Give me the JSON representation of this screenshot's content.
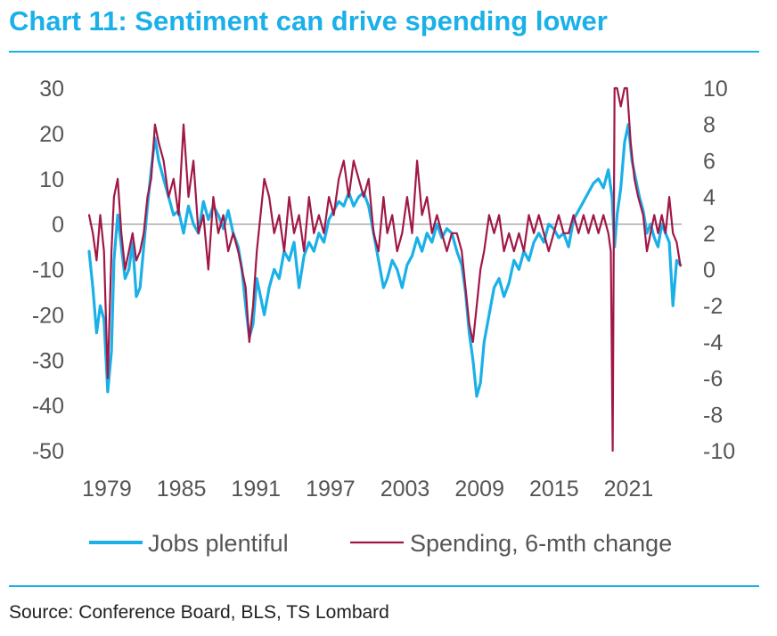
{
  "title": "Chart 11: Sentiment can drive spending lower",
  "source": "Source: Conference Board, BLS, TS Lombard",
  "chart_data": {
    "type": "line",
    "x_ticks": [
      "1979",
      "1985",
      "1991",
      "1997",
      "2003",
      "2009",
      "2015",
      "2021"
    ],
    "xlim": [
      1978.0,
      2025.7
    ],
    "y_left": {
      "ylim": [
        -50,
        30
      ],
      "ticks": [
        "30",
        "20",
        "10",
        "0",
        "-10",
        "-20",
        "-30",
        "-40",
        "-50"
      ]
    },
    "y_right": {
      "ylim": [
        -10,
        10
      ],
      "ticks": [
        "10",
        "8",
        "6",
        "4",
        "2",
        "0",
        "-2",
        "-4",
        "-6",
        "-8",
        "-10"
      ]
    },
    "zero_line_left": 0,
    "colors": {
      "jobs": "#1ab0e8",
      "spending": "#a01848",
      "zero": "#9a9a9a",
      "axis_text": "#555555"
    },
    "series": [
      {
        "name": "Jobs plentiful",
        "axis": "left",
        "points": [
          [
            1978.0,
            -6
          ],
          [
            1978.3,
            -14
          ],
          [
            1978.6,
            -24
          ],
          [
            1978.9,
            -18
          ],
          [
            1979.2,
            -21
          ],
          [
            1979.5,
            -37
          ],
          [
            1979.8,
            -28
          ],
          [
            1980.0,
            -8
          ],
          [
            1980.3,
            2
          ],
          [
            1980.6,
            -5
          ],
          [
            1980.9,
            -12
          ],
          [
            1981.2,
            -10
          ],
          [
            1981.5,
            -4
          ],
          [
            1981.8,
            -16
          ],
          [
            1982.1,
            -14
          ],
          [
            1982.4,
            -5
          ],
          [
            1982.7,
            4
          ],
          [
            1983.0,
            12
          ],
          [
            1983.3,
            19
          ],
          [
            1983.6,
            14
          ],
          [
            1984.0,
            10
          ],
          [
            1984.4,
            6
          ],
          [
            1984.8,
            2
          ],
          [
            1985.2,
            3
          ],
          [
            1985.6,
            -2
          ],
          [
            1986.0,
            4
          ],
          [
            1986.4,
            0
          ],
          [
            1986.8,
            -2
          ],
          [
            1987.2,
            5
          ],
          [
            1987.6,
            1
          ],
          [
            1988.0,
            4
          ],
          [
            1988.4,
            2
          ],
          [
            1988.8,
            -1
          ],
          [
            1989.2,
            3
          ],
          [
            1989.6,
            -2
          ],
          [
            1990.0,
            -5
          ],
          [
            1990.3,
            -10
          ],
          [
            1990.6,
            -18
          ],
          [
            1990.9,
            -25
          ],
          [
            1991.2,
            -22
          ],
          [
            1991.5,
            -12
          ],
          [
            1991.8,
            -16
          ],
          [
            1992.1,
            -20
          ],
          [
            1992.5,
            -14
          ],
          [
            1992.9,
            -10
          ],
          [
            1993.3,
            -12
          ],
          [
            1993.7,
            -6
          ],
          [
            1994.1,
            -8
          ],
          [
            1994.5,
            -4
          ],
          [
            1994.9,
            -14
          ],
          [
            1995.3,
            -7
          ],
          [
            1995.7,
            -4
          ],
          [
            1996.1,
            -6
          ],
          [
            1996.5,
            -2
          ],
          [
            1996.9,
            -4
          ],
          [
            1997.3,
            1
          ],
          [
            1997.7,
            3
          ],
          [
            1998.1,
            5
          ],
          [
            1998.5,
            4
          ],
          [
            1998.9,
            7
          ],
          [
            1999.3,
            4
          ],
          [
            1999.7,
            6
          ],
          [
            2000.1,
            7
          ],
          [
            2000.5,
            4
          ],
          [
            2000.9,
            -2
          ],
          [
            2001.3,
            -8
          ],
          [
            2001.7,
            -14
          ],
          [
            2002.0,
            -12
          ],
          [
            2002.4,
            -8
          ],
          [
            2002.8,
            -10
          ],
          [
            2003.2,
            -14
          ],
          [
            2003.6,
            -9
          ],
          [
            2004.0,
            -7
          ],
          [
            2004.4,
            -3
          ],
          [
            2004.8,
            -6
          ],
          [
            2005.2,
            -2
          ],
          [
            2005.6,
            -4
          ],
          [
            2006.0,
            0
          ],
          [
            2006.4,
            -3
          ],
          [
            2006.8,
            -1
          ],
          [
            2007.2,
            -2
          ],
          [
            2007.6,
            -6
          ],
          [
            2008.0,
            -9
          ],
          [
            2008.3,
            -15
          ],
          [
            2008.6,
            -24
          ],
          [
            2008.9,
            -30
          ],
          [
            2009.2,
            -38
          ],
          [
            2009.5,
            -35
          ],
          [
            2009.8,
            -26
          ],
          [
            2010.2,
            -20
          ],
          [
            2010.6,
            -14
          ],
          [
            2011.0,
            -12
          ],
          [
            2011.4,
            -16
          ],
          [
            2011.8,
            -13
          ],
          [
            2012.2,
            -8
          ],
          [
            2012.6,
            -10
          ],
          [
            2013.0,
            -6
          ],
          [
            2013.4,
            -8
          ],
          [
            2013.8,
            -4
          ],
          [
            2014.2,
            -2
          ],
          [
            2014.6,
            -4
          ],
          [
            2015.0,
            0
          ],
          [
            2015.4,
            -1
          ],
          [
            2015.8,
            -3
          ],
          [
            2016.2,
            -2
          ],
          [
            2016.6,
            -5
          ],
          [
            2017.0,
            1
          ],
          [
            2017.4,
            3
          ],
          [
            2017.8,
            5
          ],
          [
            2018.2,
            7
          ],
          [
            2018.6,
            9
          ],
          [
            2019.0,
            10
          ],
          [
            2019.4,
            8
          ],
          [
            2019.8,
            12
          ],
          [
            2020.1,
            6
          ],
          [
            2020.3,
            -5
          ],
          [
            2020.5,
            2
          ],
          [
            2020.8,
            8
          ],
          [
            2021.1,
            18
          ],
          [
            2021.4,
            22
          ],
          [
            2021.7,
            14
          ],
          [
            2022.0,
            10
          ],
          [
            2022.3,
            6
          ],
          [
            2022.6,
            3
          ],
          [
            2022.9,
            -2
          ],
          [
            2023.2,
            0
          ],
          [
            2023.5,
            -3
          ],
          [
            2023.8,
            -5
          ],
          [
            2024.1,
            0
          ],
          [
            2024.4,
            -2
          ],
          [
            2024.7,
            -4
          ],
          [
            2025.0,
            -18
          ],
          [
            2025.3,
            -8
          ],
          [
            2025.6,
            -9
          ]
        ]
      },
      {
        "name": "Spending, 6-mth change",
        "axis": "right",
        "points": [
          [
            1978.0,
            3
          ],
          [
            1978.3,
            2
          ],
          [
            1978.6,
            0.5
          ],
          [
            1978.9,
            3
          ],
          [
            1979.2,
            1
          ],
          [
            1979.5,
            -6
          ],
          [
            1979.8,
            1
          ],
          [
            1980.0,
            4
          ],
          [
            1980.3,
            5
          ],
          [
            1980.6,
            2
          ],
          [
            1980.9,
            0
          ],
          [
            1981.2,
            1
          ],
          [
            1981.5,
            2
          ],
          [
            1981.8,
            0.5
          ],
          [
            1982.1,
            1
          ],
          [
            1982.4,
            2
          ],
          [
            1982.7,
            4
          ],
          [
            1983.0,
            5
          ],
          [
            1983.3,
            8
          ],
          [
            1983.6,
            7
          ],
          [
            1984.0,
            6
          ],
          [
            1984.4,
            4
          ],
          [
            1984.8,
            5
          ],
          [
            1985.2,
            3
          ],
          [
            1985.6,
            8
          ],
          [
            1986.0,
            4
          ],
          [
            1986.4,
            6
          ],
          [
            1986.8,
            2
          ],
          [
            1987.2,
            3
          ],
          [
            1987.6,
            0
          ],
          [
            1988.0,
            4
          ],
          [
            1988.4,
            2
          ],
          [
            1988.8,
            3
          ],
          [
            1989.2,
            1
          ],
          [
            1989.6,
            2
          ],
          [
            1990.0,
            1
          ],
          [
            1990.3,
            0
          ],
          [
            1990.6,
            -1
          ],
          [
            1990.9,
            -4
          ],
          [
            1991.2,
            -2
          ],
          [
            1991.5,
            1
          ],
          [
            1991.8,
            3
          ],
          [
            1992.1,
            5
          ],
          [
            1992.5,
            4
          ],
          [
            1992.9,
            2
          ],
          [
            1993.3,
            3
          ],
          [
            1993.7,
            1
          ],
          [
            1994.1,
            4
          ],
          [
            1994.5,
            2
          ],
          [
            1994.9,
            3
          ],
          [
            1995.3,
            1
          ],
          [
            1995.7,
            4
          ],
          [
            1996.1,
            2
          ],
          [
            1996.5,
            3
          ],
          [
            1996.9,
            2
          ],
          [
            1997.3,
            4
          ],
          [
            1997.7,
            3
          ],
          [
            1998.1,
            5
          ],
          [
            1998.5,
            6
          ],
          [
            1998.9,
            4
          ],
          [
            1999.3,
            6
          ],
          [
            1999.7,
            5
          ],
          [
            2000.1,
            4
          ],
          [
            2000.5,
            5
          ],
          [
            2000.9,
            2
          ],
          [
            2001.3,
            1
          ],
          [
            2001.7,
            4
          ],
          [
            2002.0,
            2
          ],
          [
            2002.4,
            3
          ],
          [
            2002.8,
            1
          ],
          [
            2003.2,
            2
          ],
          [
            2003.6,
            4
          ],
          [
            2004.0,
            2
          ],
          [
            2004.4,
            6
          ],
          [
            2004.8,
            3
          ],
          [
            2005.2,
            4
          ],
          [
            2005.6,
            2
          ],
          [
            2006.0,
            3
          ],
          [
            2006.4,
            2
          ],
          [
            2006.8,
            1
          ],
          [
            2007.2,
            2
          ],
          [
            2007.6,
            2
          ],
          [
            2008.0,
            1
          ],
          [
            2008.3,
            -1
          ],
          [
            2008.6,
            -3
          ],
          [
            2008.9,
            -4
          ],
          [
            2009.2,
            -2
          ],
          [
            2009.5,
            0
          ],
          [
            2009.8,
            1
          ],
          [
            2010.2,
            3
          ],
          [
            2010.6,
            2
          ],
          [
            2011.0,
            3
          ],
          [
            2011.4,
            1
          ],
          [
            2011.8,
            2
          ],
          [
            2012.2,
            1
          ],
          [
            2012.6,
            2
          ],
          [
            2013.0,
            1
          ],
          [
            2013.4,
            3
          ],
          [
            2013.8,
            2
          ],
          [
            2014.2,
            3
          ],
          [
            2014.6,
            2
          ],
          [
            2015.0,
            1
          ],
          [
            2015.4,
            2
          ],
          [
            2015.8,
            3
          ],
          [
            2016.2,
            2
          ],
          [
            2016.6,
            2
          ],
          [
            2017.0,
            3
          ],
          [
            2017.4,
            2
          ],
          [
            2017.8,
            3
          ],
          [
            2018.2,
            2
          ],
          [
            2018.6,
            3
          ],
          [
            2019.0,
            2
          ],
          [
            2019.4,
            3
          ],
          [
            2019.8,
            2
          ],
          [
            2020.0,
            1
          ],
          [
            2020.15,
            -10
          ],
          [
            2020.3,
            10
          ],
          [
            2020.5,
            10
          ],
          [
            2020.8,
            9
          ],
          [
            2021.1,
            10
          ],
          [
            2021.3,
            10
          ],
          [
            2021.6,
            7
          ],
          [
            2021.9,
            5
          ],
          [
            2022.2,
            4
          ],
          [
            2022.6,
            3
          ],
          [
            2022.9,
            1
          ],
          [
            2023.2,
            2
          ],
          [
            2023.5,
            3
          ],
          [
            2023.8,
            2
          ],
          [
            2024.1,
            3
          ],
          [
            2024.4,
            2
          ],
          [
            2024.7,
            4
          ],
          [
            2025.0,
            2
          ],
          [
            2025.3,
            1.5
          ],
          [
            2025.6,
            0.2
          ]
        ]
      }
    ],
    "legend": {
      "placement": "bottom"
    }
  }
}
